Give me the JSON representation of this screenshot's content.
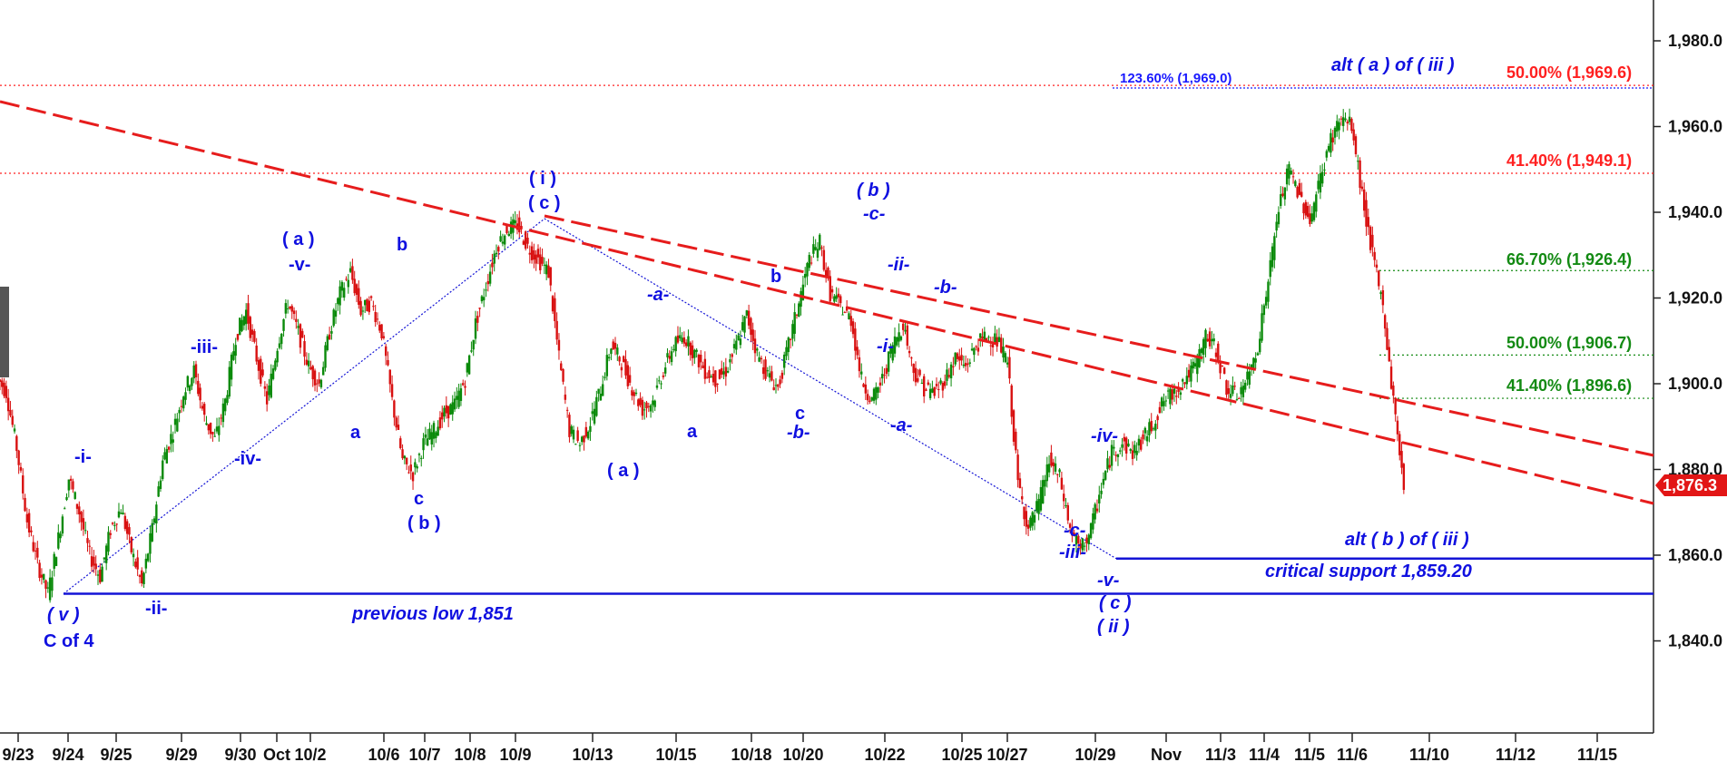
{
  "chart_data": {
    "type": "line",
    "subtype": "candlestick",
    "x_tick_labels": [
      "9/23",
      "9/24",
      "9/25",
      "9/29",
      "9/30",
      "Oct",
      "10/2",
      "10/6",
      "10/7",
      "10/8",
      "10/9",
      "10/13",
      "10/15",
      "10/18",
      "10/20",
      "10/22",
      "10/25",
      "10/27",
      "10/29",
      "Nov",
      "11/3",
      "11/4",
      "11/5",
      "11/6",
      "11/10",
      "11/12",
      "11/15"
    ],
    "y_tick_labels": [
      "1,980.0",
      "1,960.0",
      "1,940.0",
      "1,920.0",
      "1,900.0",
      "1,880.0",
      "1,860.0",
      "1,840.0"
    ],
    "ylim": [
      1822,
      1988
    ],
    "grid": false,
    "last_price": "1,876.3",
    "series": [
      {
        "values": [
          1898,
          1885,
          1868,
          1858,
          1851,
          1864,
          1878,
          1870,
          1860,
          1855,
          1866,
          1871,
          1861,
          1853,
          1866,
          1882,
          1889,
          1898,
          1903,
          1892,
          1887,
          1896,
          1911,
          1917,
          1906,
          1896,
          1909,
          1919,
          1912,
          1904,
          1900,
          1912,
          1921,
          1926,
          1917,
          1919,
          1912,
          1896,
          1882,
          1879,
          1886,
          1889,
          1893,
          1895,
          1901,
          1914,
          1923,
          1932,
          1936,
          1937,
          1932,
          1929,
          1926,
          1906,
          1889,
          1886,
          1891,
          1899,
          1909,
          1905,
          1899,
          1894,
          1896,
          1903,
          1909,
          1911,
          1907,
          1903,
          1901,
          1903,
          1909,
          1916,
          1907,
          1902,
          1899,
          1909,
          1919,
          1929,
          1933,
          1921,
          1918,
          1915,
          1901,
          1896,
          1901,
          1909,
          1914,
          1903,
          1899,
          1898,
          1901,
          1906,
          1904,
          1909,
          1911,
          1910,
          1905,
          1877,
          1866,
          1872,
          1882,
          1878,
          1866,
          1861,
          1866,
          1876,
          1884,
          1886,
          1884,
          1887,
          1891,
          1896,
          1898,
          1901,
          1904,
          1911,
          1908,
          1899,
          1897,
          1901,
          1909,
          1924,
          1941,
          1950,
          1944,
          1938,
          1948,
          1957,
          1962,
          1960,
          1944,
          1930,
          1918,
          1896,
          1876.3
        ]
      }
    ],
    "horizontal_levels": [
      {
        "label": "previous low 1,851",
        "value": 1851
      },
      {
        "label": "critical support 1,859.20",
        "value": 1859.2
      }
    ],
    "fib_labels": [
      {
        "text": "50.00% (1,969.6)",
        "value": 1969.6,
        "color": "#ff2020"
      },
      {
        "text": "41.40% (1,949.1)",
        "value": 1949.1,
        "color": "#ff2020"
      },
      {
        "text": "66.70% (1,926.4)",
        "value": 1926.4,
        "color": "#138a13"
      },
      {
        "text": "50.00% (1,906.7)",
        "value": 1906.7,
        "color": "#138a13"
      },
      {
        "text": "41.40% (1,896.6)",
        "value": 1896.6,
        "color": "#138a13"
      },
      {
        "text": "123.60% (1,969.0)",
        "value": 1969.0,
        "color": "#1a1aff"
      }
    ],
    "wave_annotations": {
      "v_low": "( v )",
      "c_of_4": "C of 4",
      "ii_small": "-ii-",
      "i_small": "-i-",
      "iii_small": "-iii-",
      "iv_small": "-iv-",
      "a_paren_1": "( a )",
      "v_small": "-v-",
      "b_1": "b",
      "a_1": "a",
      "c_1": "c",
      "b_paren_1": "( b )",
      "i_paren": "( i )",
      "c_paren_1": "( c )",
      "a_paren_2": "( a )",
      "a_dash": "-a-",
      "a_2": "a",
      "b_2": "b",
      "c_2": "c",
      "b_dash": "-b-",
      "b_paren_2": "( b )",
      "c_dash": "-c-",
      "ii_dash": "-ii-",
      "i_dash": "-i-",
      "b_dash_2": "-b-",
      "a_dash_2": "-a-",
      "c_dash_2": "-c-",
      "iii_dash_2": "-iii-",
      "iv_dash_2": "-iv-",
      "v_dash_2": "-v-",
      "c_paren_2": "( c )",
      "ii_paren": "( ii )",
      "alt_a": "alt ( a ) of ( iii )",
      "alt_b": "alt ( b ) of ( iii )"
    },
    "colors": {
      "up_candle": "#0a8a0a",
      "down_candle": "#d81010",
      "trendline": "#e61c1c",
      "support": "#1414d6",
      "annotation": "#1010e0",
      "fib_red": "#ff2020",
      "fib_green": "#138a13",
      "price_tag": "#e21616"
    }
  }
}
